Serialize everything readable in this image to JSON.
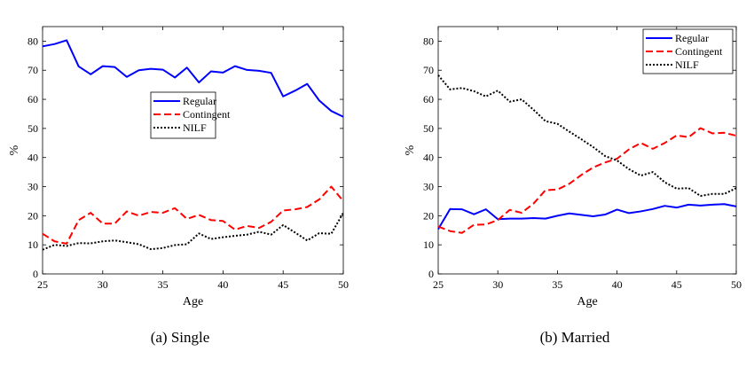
{
  "chart_data": [
    {
      "type": "line",
      "caption": "(a) Single",
      "xlabel": "Age",
      "ylabel": "%",
      "xlim": [
        25,
        50
      ],
      "ylim": [
        0,
        85
      ],
      "xticks": [
        25,
        30,
        35,
        40,
        45,
        50
      ],
      "yticks": [
        0,
        10,
        20,
        30,
        40,
        50,
        60,
        70,
        80
      ],
      "legend_position": "center-right",
      "x": [
        25,
        26,
        27,
        28,
        29,
        30,
        31,
        32,
        33,
        34,
        35,
        36,
        37,
        38,
        39,
        40,
        41,
        42,
        43,
        44,
        45,
        46,
        47,
        48,
        49,
        50
      ],
      "series": [
        {
          "name": "Regular",
          "color": "#0000ff",
          "style": "solid",
          "values": [
            78.2,
            79,
            80.3,
            71.3,
            68.6,
            71.4,
            71.1,
            67.7,
            70,
            70.5,
            70.2,
            67.5,
            70.9,
            65.8,
            69.6,
            69.2,
            71.4,
            70.1,
            69.8,
            69.1,
            61,
            63,
            65.3,
            59.6,
            56,
            54
          ]
        },
        {
          "name": "Contingent",
          "color": "#ff0000",
          "style": "dashed",
          "values": [
            13.8,
            11.2,
            10.4,
            18.5,
            21,
            17.3,
            17.3,
            21.5,
            20,
            21.3,
            21,
            22.6,
            18.9,
            20.3,
            18.5,
            18.2,
            15.2,
            16.5,
            15.8,
            17.9,
            21.8,
            22.2,
            23,
            25.6,
            30,
            25
          ]
        },
        {
          "name": "NILF",
          "color": "#000000",
          "style": "dotted",
          "values": [
            8.3,
            10,
            9.6,
            10.6,
            10.5,
            11.2,
            11.5,
            10.9,
            10.2,
            8.5,
            8.9,
            9.9,
            10.2,
            13.9,
            12,
            12.6,
            13.1,
            13.5,
            14.5,
            13.5,
            16.8,
            14.2,
            11.5,
            14,
            13.8,
            21
          ]
        }
      ]
    },
    {
      "type": "line",
      "caption": "(b) Married",
      "xlabel": "Age",
      "ylabel": "%",
      "xlim": [
        25,
        50
      ],
      "ylim": [
        0,
        85
      ],
      "xticks": [
        25,
        30,
        35,
        40,
        45,
        50
      ],
      "yticks": [
        0,
        10,
        20,
        30,
        40,
        50,
        60,
        70,
        80
      ],
      "legend_position": "top-right",
      "x": [
        25,
        26,
        27,
        28,
        29,
        30,
        31,
        32,
        33,
        34,
        35,
        36,
        37,
        38,
        39,
        40,
        41,
        42,
        43,
        44,
        45,
        46,
        47,
        48,
        49,
        50
      ],
      "series": [
        {
          "name": "Regular",
          "color": "#0000ff",
          "style": "solid",
          "values": [
            15.4,
            22.3,
            22.2,
            20.5,
            22.2,
            18.8,
            19,
            19,
            19.2,
            19,
            20,
            20.8,
            20.3,
            19.8,
            20.4,
            22.1,
            20.9,
            21.5,
            22.3,
            23.4,
            22.8,
            23.8,
            23.5,
            23.8,
            24,
            23.2
          ]
        },
        {
          "name": "Contingent",
          "color": "#ff0000",
          "style": "dashed",
          "values": [
            16.3,
            14.7,
            14.1,
            16.9,
            17,
            18.5,
            22,
            21,
            24.2,
            28.8,
            29,
            31,
            34,
            36.6,
            38.3,
            39.6,
            42.8,
            45,
            43,
            45,
            47.6,
            47,
            50.1,
            48.3,
            48.5,
            47.5
          ]
        },
        {
          "name": "NILF",
          "color": "#000000",
          "style": "dotted",
          "values": [
            68.3,
            63.4,
            63.9,
            62.8,
            61,
            63,
            59.2,
            60,
            56.4,
            52.5,
            51.6,
            48.9,
            46.3,
            43.6,
            40.5,
            39,
            36,
            33.8,
            35,
            31.5,
            29.3,
            29.5,
            26.8,
            27.5,
            27.5,
            29.5
          ]
        }
      ]
    }
  ]
}
